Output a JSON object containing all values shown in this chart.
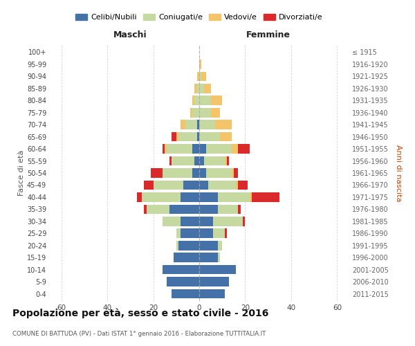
{
  "age_groups": [
    "0-4",
    "5-9",
    "10-14",
    "15-19",
    "20-24",
    "25-29",
    "30-34",
    "35-39",
    "40-44",
    "45-49",
    "50-54",
    "55-59",
    "60-64",
    "65-69",
    "70-74",
    "75-79",
    "80-84",
    "85-89",
    "90-94",
    "95-99",
    "100+"
  ],
  "birth_years": [
    "2011-2015",
    "2006-2010",
    "2001-2005",
    "1996-2000",
    "1991-1995",
    "1986-1990",
    "1981-1985",
    "1976-1980",
    "1971-1975",
    "1966-1970",
    "1961-1965",
    "1956-1960",
    "1951-1955",
    "1946-1950",
    "1941-1945",
    "1936-1940",
    "1931-1935",
    "1926-1930",
    "1921-1925",
    "1916-1920",
    "≤ 1915"
  ],
  "colors": {
    "celibi": "#4472a8",
    "coniugati": "#c5d9a0",
    "vedovi": "#f4c46a",
    "divorziati": "#d9292b"
  },
  "males": {
    "celibi": [
      12,
      14,
      16,
      11,
      9,
      8,
      8,
      13,
      8,
      7,
      3,
      2,
      3,
      1,
      1,
      0,
      0,
      0,
      0,
      0,
      0
    ],
    "coniugati": [
      0,
      0,
      0,
      0,
      1,
      2,
      8,
      10,
      17,
      13,
      13,
      10,
      11,
      8,
      5,
      3,
      2,
      1,
      0,
      0,
      0
    ],
    "vedovi": [
      0,
      0,
      0,
      0,
      0,
      0,
      0,
      0,
      0,
      0,
      0,
      0,
      1,
      1,
      2,
      1,
      1,
      1,
      1,
      0,
      0
    ],
    "divorziati": [
      0,
      0,
      0,
      0,
      0,
      0,
      0,
      1,
      2,
      4,
      5,
      1,
      1,
      2,
      0,
      0,
      0,
      0,
      0,
      0,
      0
    ]
  },
  "females": {
    "celibi": [
      11,
      13,
      16,
      8,
      8,
      6,
      6,
      8,
      8,
      4,
      3,
      2,
      3,
      0,
      0,
      0,
      0,
      0,
      0,
      0,
      0
    ],
    "coniugati": [
      0,
      0,
      0,
      1,
      2,
      5,
      13,
      9,
      14,
      12,
      11,
      9,
      11,
      9,
      7,
      5,
      5,
      2,
      1,
      0,
      0
    ],
    "vedovi": [
      0,
      0,
      0,
      0,
      0,
      0,
      0,
      0,
      1,
      1,
      1,
      1,
      3,
      5,
      7,
      4,
      5,
      3,
      2,
      1,
      0
    ],
    "divorziati": [
      0,
      0,
      0,
      0,
      0,
      1,
      1,
      1,
      12,
      4,
      2,
      1,
      5,
      0,
      0,
      0,
      0,
      0,
      0,
      0,
      0
    ]
  },
  "xlim": 65,
  "title": "Popolazione per età, sesso e stato civile - 2016",
  "subtitle": "COMUNE DI BATTUDA (PV) - Dati ISTAT 1° gennaio 2016 - Elaborazione TUTTITALIA.IT",
  "ylabel_left": "Fasce di età",
  "ylabel_right": "Anni di nascita",
  "xlabel_left": "Maschi",
  "xlabel_right": "Femmine",
  "legend_labels": [
    "Celibi/Nubili",
    "Coniugati/e",
    "Vedovi/e",
    "Divorziati/e"
  ],
  "background_color": "#ffffff",
  "grid_color": "#d0d0d0"
}
